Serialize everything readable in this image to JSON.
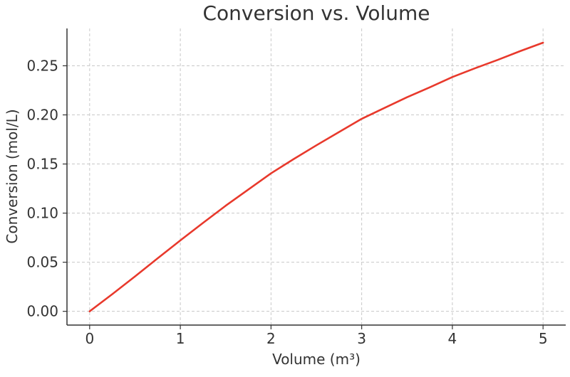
{
  "chart_data": {
    "type": "line",
    "title": "Conversion vs. Volume",
    "xlabel": "Volume (m³)",
    "ylabel": "Conversion (mol/L)",
    "xlim": [
      -0.25,
      5.25
    ],
    "ylim": [
      -0.014,
      0.288
    ],
    "xticks": [
      0,
      1,
      2,
      3,
      4,
      5
    ],
    "xtick_labels": [
      "0",
      "1",
      "2",
      "3",
      "4",
      "5"
    ],
    "yticks": [
      0.0,
      0.05,
      0.1,
      0.15,
      0.2,
      0.25
    ],
    "ytick_labels": [
      "0.00",
      "0.05",
      "0.10",
      "0.15",
      "0.20",
      "0.25"
    ],
    "grid": true,
    "series": [
      {
        "color": "#e8392c",
        "x": [
          0,
          0.25,
          0.5,
          0.75,
          1.0,
          1.25,
          1.5,
          1.75,
          2.0,
          2.25,
          2.5,
          2.75,
          3.0,
          3.25,
          3.5,
          3.75,
          4.0,
          4.25,
          4.5,
          4.75,
          5.0
        ],
        "y": [
          0,
          0.0175,
          0.0355,
          0.054,
          0.0722,
          0.09,
          0.1075,
          0.124,
          0.1405,
          0.155,
          0.169,
          0.1825,
          0.196,
          0.207,
          0.218,
          0.228,
          0.2385,
          0.2475,
          0.256,
          0.265,
          0.2735
        ]
      }
    ]
  }
}
